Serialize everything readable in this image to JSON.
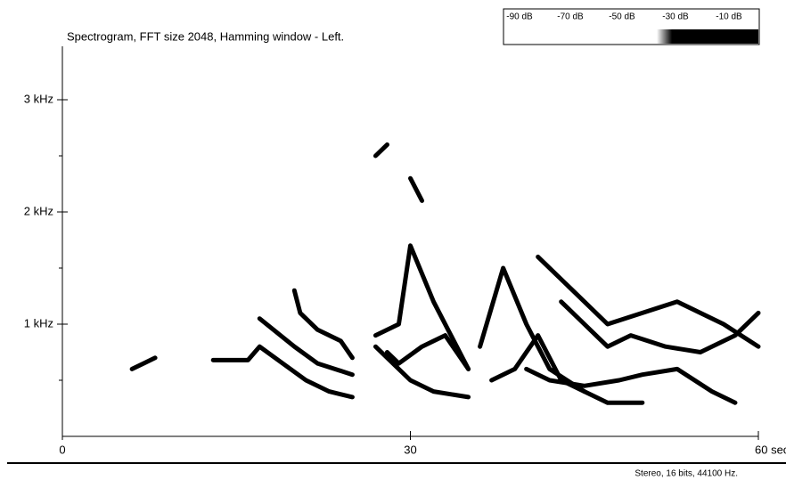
{
  "chart_data": {
    "type": "spectrogram",
    "title": "Spectrogram, FFT size 2048, Hamming window - Left.",
    "footer": "Stereo, 16 bits, 44100 Hz.",
    "colorbar_labels": [
      "-90 dB",
      "-70 dB",
      "-50 dB",
      "-30 dB",
      "-10 dB"
    ],
    "xlim": [
      0,
      60
    ],
    "xticks": [
      0,
      30,
      {
        "value": 60,
        "label": "60 sec"
      }
    ],
    "ylim": [
      0,
      3.5
    ],
    "yticks": [
      {
        "value": 1,
        "label": "1 kHz"
      },
      {
        "value": 2,
        "label": "2 kHz"
      },
      {
        "value": 3,
        "label": "3 kHz"
      }
    ],
    "yminor_ticks": [
      0.5,
      1.5,
      2.5
    ],
    "color": "#000000",
    "series": [
      {
        "x": [
          6,
          7,
          8
        ],
        "values": [
          0.6,
          0.65,
          0.7
        ]
      },
      {
        "x": [
          13,
          16,
          17,
          19,
          21,
          23,
          25
        ],
        "values": [
          0.68,
          0.68,
          0.8,
          0.65,
          0.5,
          0.4,
          0.35
        ]
      },
      {
        "x": [
          17,
          20,
          22,
          25
        ],
        "values": [
          1.05,
          0.8,
          0.65,
          0.55
        ]
      },
      {
        "x": [
          20,
          20.5,
          22,
          24,
          25
        ],
        "values": [
          1.3,
          1.1,
          0.95,
          0.85,
          0.7
        ]
      },
      {
        "x": [
          27,
          28,
          30,
          32,
          35
        ],
        "values": [
          0.8,
          0.7,
          0.5,
          0.4,
          0.35
        ]
      },
      {
        "x": [
          27,
          29,
          30,
          32,
          35
        ],
        "values": [
          0.9,
          1.0,
          1.7,
          1.2,
          0.6
        ]
      },
      {
        "x": [
          28,
          29,
          31,
          33,
          35
        ],
        "values": [
          0.75,
          0.65,
          0.8,
          0.9,
          0.6
        ]
      },
      {
        "x": [
          36,
          38,
          40,
          42,
          45
        ],
        "values": [
          0.8,
          1.5,
          1.0,
          0.6,
          0.4
        ]
      },
      {
        "x": [
          37,
          39,
          41,
          43,
          47,
          50
        ],
        "values": [
          0.5,
          0.6,
          0.9,
          0.5,
          0.3,
          0.3
        ]
      },
      {
        "x": [
          43,
          45,
          47,
          49,
          52,
          55,
          58,
          60
        ],
        "values": [
          1.2,
          1.0,
          0.8,
          0.9,
          0.8,
          0.75,
          0.9,
          1.1
        ]
      },
      {
        "x": [
          40,
          42,
          45,
          48,
          50,
          53,
          56,
          58
        ],
        "values": [
          0.6,
          0.5,
          0.45,
          0.5,
          0.55,
          0.6,
          0.4,
          0.3
        ]
      },
      {
        "x": [
          41,
          44,
          47,
          50,
          53,
          57,
          60
        ],
        "values": [
          1.6,
          1.3,
          1.0,
          1.1,
          1.2,
          1.0,
          0.8
        ]
      },
      {
        "x": [
          27,
          28
        ],
        "values": [
          2.5,
          2.6
        ]
      },
      {
        "x": [
          30,
          31
        ],
        "values": [
          2.3,
          2.1
        ]
      }
    ]
  }
}
